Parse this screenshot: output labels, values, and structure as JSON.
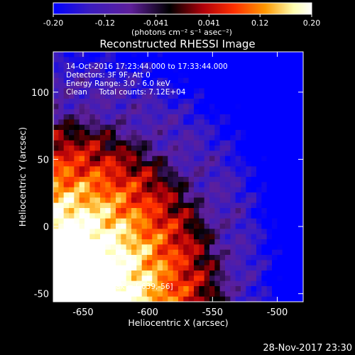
{
  "chart_data": {
    "type": "heatmap",
    "title": "Reconstructed RHESSI Image",
    "xlabel": "Heliocentric X (arcsec)",
    "ylabel": "Heliocentric Y (arcsec)",
    "xlim": [
      -673,
      -480
    ],
    "ylim": [
      -56,
      130
    ],
    "x_ticks": [
      "-650",
      "-600",
      "-550",
      "-500"
    ],
    "x_tick_values": [
      -650,
      -600,
      -550,
      -500
    ],
    "y_ticks": [
      "-50",
      "0",
      "50",
      "100"
    ],
    "y_tick_values": [
      -50,
      0,
      50,
      100
    ],
    "colorbar": {
      "ticks": [
        "-0.20",
        "-0.12",
        "-0.041",
        "0.041",
        "0.12",
        "0.20"
      ],
      "tick_values": [
        -0.2,
        -0.12,
        -0.041,
        0.041,
        0.12,
        0.2
      ],
      "range": [
        -0.2,
        0.2
      ],
      "units": "(photons cm⁻² s⁻¹ asec⁻²)",
      "colormap": [
        "#0000ff",
        "#3a1cc0",
        "#5e1f9a",
        "#000000",
        "#b0000a",
        "#ff3000",
        "#ff9800",
        "#ffffb0",
        "#ffffff"
      ]
    },
    "annotations": [
      "14-Oct-2016 17:23:44.000 to 17:33:44.000",
      "Detectors: 3F 9F, Att 0",
      "Energy Range: 3.0 - 6.0 keV",
      "Clean     Total counts: 7.12E+04"
    ],
    "peak_label": "Position of Peak = [-639,-56]",
    "peak": [
      -639,
      -56
    ],
    "footer_timestamp": "28-Nov-2017 23:30"
  }
}
